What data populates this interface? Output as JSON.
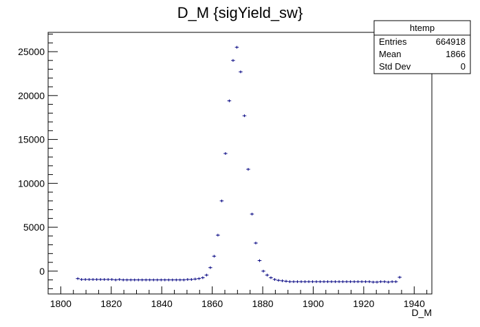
{
  "chart_data": {
    "type": "scatter",
    "title": "D_M {sigYield_sw}",
    "xlabel": "D_M",
    "ylabel": "",
    "xlim": [
      1795,
      1947
    ],
    "ylim": [
      -2600,
      27200
    ],
    "xticks": [
      1800,
      1820,
      1840,
      1860,
      1880,
      1900,
      1920,
      1940
    ],
    "yticks": [
      0,
      5000,
      10000,
      15000,
      20000,
      25000
    ],
    "grid": false,
    "legend": "none",
    "bin_width": 1.5,
    "series": [
      {
        "color": "#000080",
        "x": [
          1806.75,
          1808.25,
          1809.75,
          1811.25,
          1812.75,
          1814.25,
          1815.75,
          1817.25,
          1818.75,
          1820.25,
          1821.75,
          1823.25,
          1824.75,
          1826.25,
          1827.75,
          1829.25,
          1830.75,
          1832.25,
          1833.75,
          1835.25,
          1836.75,
          1838.25,
          1839.75,
          1841.25,
          1842.75,
          1844.25,
          1845.75,
          1847.25,
          1848.75,
          1850.25,
          1851.75,
          1853.25,
          1854.75,
          1856.25,
          1857.75,
          1859.25,
          1860.75,
          1862.25,
          1863.75,
          1865.25,
          1866.75,
          1868.25,
          1869.75,
          1871.25,
          1872.75,
          1874.25,
          1875.75,
          1877.25,
          1878.75,
          1880.25,
          1881.75,
          1883.25,
          1884.75,
          1886.25,
          1887.75,
          1889.25,
          1890.75,
          1892.25,
          1893.75,
          1895.25,
          1896.75,
          1898.25,
          1899.75,
          1901.25,
          1902.75,
          1904.25,
          1905.75,
          1907.25,
          1908.75,
          1910.25,
          1911.75,
          1913.25,
          1914.75,
          1916.25,
          1917.75,
          1919.25,
          1920.75,
          1922.25,
          1923.75,
          1925.25,
          1926.75,
          1928.25,
          1929.75,
          1931.25,
          1932.75,
          1934.25
        ],
        "y": [
          -850,
          -950,
          -950,
          -950,
          -950,
          -950,
          -950,
          -950,
          -950,
          -950,
          -1000,
          -950,
          -1000,
          -1000,
          -1000,
          -1000,
          -1000,
          -1000,
          -1000,
          -1000,
          -1000,
          -1000,
          -1000,
          -1000,
          -1000,
          -1000,
          -1000,
          -1000,
          -1000,
          -950,
          -950,
          -900,
          -850,
          -750,
          -450,
          400,
          1700,
          4100,
          8000,
          13400,
          19400,
          24000,
          25500,
          22700,
          17700,
          11600,
          6500,
          3200,
          1200,
          0,
          -450,
          -750,
          -950,
          -1050,
          -1100,
          -1150,
          -1200,
          -1200,
          -1200,
          -1200,
          -1200,
          -1200,
          -1200,
          -1200,
          -1200,
          -1200,
          -1200,
          -1200,
          -1200,
          -1200,
          -1200,
          -1200,
          -1200,
          -1200,
          -1200,
          -1200,
          -1200,
          -1200,
          -1250,
          -1250,
          -1200,
          -1200,
          -1250,
          -1200,
          -1200,
          -700
        ]
      }
    ]
  },
  "stats": {
    "name": "htemp",
    "rows": [
      {
        "label": "Entries",
        "value": "664918"
      },
      {
        "label": "Mean",
        "value": "1866"
      },
      {
        "label": "Std Dev",
        "value": "0"
      }
    ]
  }
}
